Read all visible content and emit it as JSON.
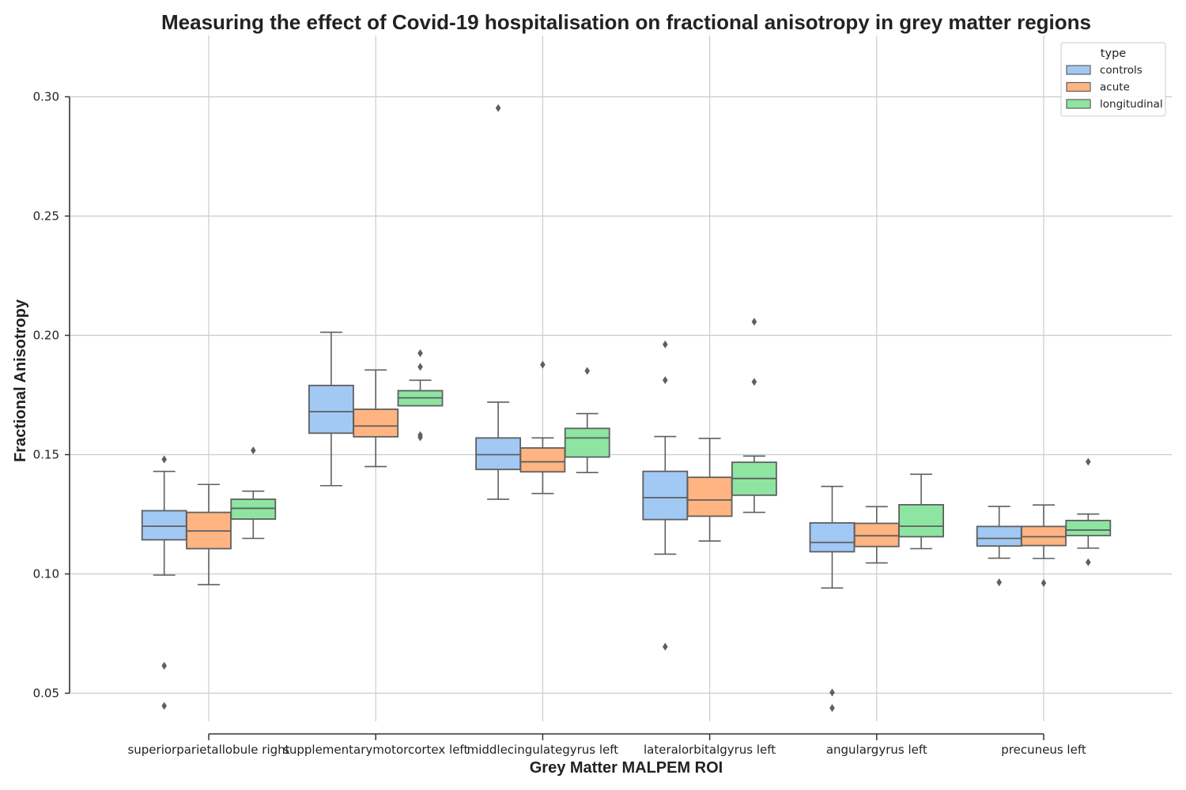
{
  "chart_data": {
    "type": "box",
    "title": "Measuring the effect of Covid-19 hospitalisation on fractional anisotropy in grey matter regions",
    "xlabel": "Grey Matter MALPEM ROI",
    "ylabel": "Fractional Anisotropy",
    "ylim": [
      0.035,
      0.325
    ],
    "yticks": [
      0.05,
      0.1,
      0.15,
      0.2,
      0.25,
      0.3
    ],
    "ytick_labels": [
      "0.05",
      "0.10",
      "0.15",
      "0.20",
      "0.25",
      "0.30"
    ],
    "grid": true,
    "legend": {
      "title": "type",
      "position": "top-right"
    },
    "categories": [
      "superiorparietallobule right",
      "supplementarymotorcortex left",
      "middlecingulategyrus left",
      "lateralorbitalgyrus left",
      "angulargyrus left",
      "precuneus left"
    ],
    "series": [
      {
        "name": "controls",
        "color": "#a1c9f4",
        "boxes": [
          {
            "whisker_low": 0.0995,
            "q1": 0.1143,
            "median": 0.12,
            "q3": 0.1265,
            "whisker_high": 0.143,
            "outliers": [
              0.148,
              0.0615,
              0.0447
            ]
          },
          {
            "whisker_low": 0.137,
            "q1": 0.159,
            "median": 0.168,
            "q3": 0.179,
            "whisker_high": 0.2013,
            "outliers": []
          },
          {
            "whisker_low": 0.1313,
            "q1": 0.1438,
            "median": 0.15,
            "q3": 0.157,
            "whisker_high": 0.172,
            "outliers": [
              0.2953
            ]
          },
          {
            "whisker_low": 0.1083,
            "q1": 0.1228,
            "median": 0.132,
            "q3": 0.143,
            "whisker_high": 0.1576,
            "outliers": [
              0.1962,
              0.1812,
              0.0695
            ]
          },
          {
            "whisker_low": 0.0941,
            "q1": 0.1093,
            "median": 0.1132,
            "q3": 0.1214,
            "whisker_high": 0.1367,
            "outliers": [
              0.0503,
              0.0438
            ]
          },
          {
            "whisker_low": 0.1066,
            "q1": 0.1117,
            "median": 0.1149,
            "q3": 0.1199,
            "whisker_high": 0.1283,
            "outliers": [
              0.0965
            ]
          }
        ]
      },
      {
        "name": "acute",
        "color": "#ffb482",
        "boxes": [
          {
            "whisker_low": 0.0955,
            "q1": 0.1106,
            "median": 0.118,
            "q3": 0.1258,
            "whisker_high": 0.1375,
            "outliers": []
          },
          {
            "whisker_low": 0.145,
            "q1": 0.1575,
            "median": 0.162,
            "q3": 0.169,
            "whisker_high": 0.1855,
            "outliers": []
          },
          {
            "whisker_low": 0.1337,
            "q1": 0.1428,
            "median": 0.147,
            "q3": 0.1528,
            "whisker_high": 0.157,
            "outliers": [
              0.1877
            ]
          },
          {
            "whisker_low": 0.1138,
            "q1": 0.1242,
            "median": 0.131,
            "q3": 0.1405,
            "whisker_high": 0.1568,
            "outliers": []
          },
          {
            "whisker_low": 0.1046,
            "q1": 0.1115,
            "median": 0.116,
            "q3": 0.1212,
            "whisker_high": 0.1282,
            "outliers": []
          },
          {
            "whisker_low": 0.1065,
            "q1": 0.1119,
            "median": 0.1156,
            "q3": 0.1199,
            "whisker_high": 0.1289,
            "outliers": [
              0.0962
            ]
          }
        ]
      },
      {
        "name": "longitudinal",
        "color": "#8de5a1",
        "boxes": [
          {
            "whisker_low": 0.1149,
            "q1": 0.123,
            "median": 0.1275,
            "q3": 0.1313,
            "whisker_high": 0.1347,
            "outliers": [
              0.1518
            ]
          },
          {
            "whisker_low": 0.1705,
            "q1": 0.1705,
            "median": 0.1738,
            "q3": 0.1768,
            "whisker_high": 0.1812,
            "outliers": [
              0.1925,
              0.1868,
              0.1582,
              0.1573
            ]
          },
          {
            "whisker_low": 0.1425,
            "q1": 0.149,
            "median": 0.157,
            "q3": 0.161,
            "whisker_high": 0.1672,
            "outliers": [
              0.1851
            ]
          },
          {
            "whisker_low": 0.1258,
            "q1": 0.133,
            "median": 0.14,
            "q3": 0.1468,
            "whisker_high": 0.1494,
            "outliers": [
              0.2057,
              0.1805
            ]
          },
          {
            "whisker_low": 0.1106,
            "q1": 0.1156,
            "median": 0.12,
            "q3": 0.129,
            "whisker_high": 0.1418,
            "outliers": []
          },
          {
            "whisker_low": 0.1108,
            "q1": 0.1161,
            "median": 0.1184,
            "q3": 0.1224,
            "whisker_high": 0.1251,
            "outliers": [
              0.147,
              0.1049
            ]
          }
        ]
      }
    ]
  }
}
